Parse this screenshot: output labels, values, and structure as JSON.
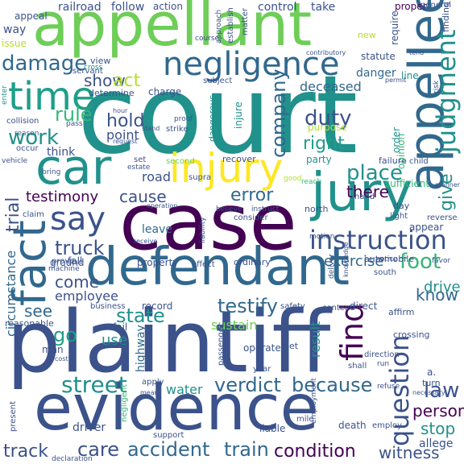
{
  "background": "#ffffff",
  "palette": {
    "dark": "#440154",
    "indigo": "#3b528b",
    "blue": "#31688e",
    "teal": "#21918c",
    "sea": "#1f9e89",
    "green": "#35b779",
    "lime": "#6ece58",
    "yellow": "#b5de2b",
    "gold": "#fde725"
  },
  "words": [
    {
      "text": "court",
      "color": "#21918c"
    },
    {
      "text": "plaintiff",
      "color": "#3b528b"
    },
    {
      "text": "evidence",
      "color": "#3b528b"
    },
    {
      "text": "case",
      "color": "#440154"
    },
    {
      "text": "appellant",
      "color": "#6ece58"
    },
    {
      "text": "defendant",
      "color": "#31688e"
    },
    {
      "text": "jury",
      "color": "#21918c"
    },
    {
      "text": "injury",
      "color": "#fde725"
    },
    {
      "text": "car",
      "color": "#21918c"
    },
    {
      "text": "appellee",
      "color": "#31688e"
    },
    {
      "text": "time",
      "color": "#1f9e89"
    },
    {
      "text": "negligence",
      "color": "#31688e"
    },
    {
      "text": "fact",
      "color": "#31688e"
    },
    {
      "text": "say",
      "color": "#3b528b"
    },
    {
      "text": "judgment",
      "color": "#21918c"
    },
    {
      "text": "instruction",
      "color": "#3b528b"
    },
    {
      "text": "question",
      "color": "#3b528b"
    },
    {
      "text": "find",
      "color": "#440154"
    },
    {
      "text": "law",
      "color": "#3b528b"
    },
    {
      "text": "street",
      "color": "#21918c"
    },
    {
      "text": "verdict",
      "color": "#31688e"
    },
    {
      "text": "because",
      "color": "#31688e"
    },
    {
      "text": "accident",
      "color": "#31688e"
    },
    {
      "text": "train",
      "color": "#31688e"
    },
    {
      "text": "condition",
      "color": "#440154"
    },
    {
      "text": "witness",
      "color": "#3b528b"
    },
    {
      "text": "work",
      "color": "#21918c"
    },
    {
      "text": "rule",
      "color": "#35b779"
    },
    {
      "text": "damage",
      "color": "#31688e"
    },
    {
      "text": "show",
      "color": "#3b528b"
    },
    {
      "text": "act",
      "color": "#b5de2b"
    },
    {
      "text": "hold",
      "color": "#3b528b"
    },
    {
      "text": "point",
      "color": "#3b528b"
    },
    {
      "text": "company",
      "color": "#31688e"
    },
    {
      "text": "duty",
      "color": "#3b528b"
    },
    {
      "text": "right",
      "color": "#1f9e89"
    },
    {
      "text": "place",
      "color": "#21918c"
    },
    {
      "text": "there",
      "color": "#440154"
    },
    {
      "text": "give",
      "color": "#21918c"
    },
    {
      "text": "testimony",
      "color": "#440154"
    },
    {
      "text": "cause",
      "color": "#3b528b"
    },
    {
      "text": "error",
      "color": "#31688e"
    },
    {
      "text": "trial",
      "color": "#3b528b"
    },
    {
      "text": "truck",
      "color": "#3b528b"
    },
    {
      "text": "foot",
      "color": "#35b779"
    },
    {
      "text": "know",
      "color": "#31688e"
    },
    {
      "text": "testify",
      "color": "#31688e"
    },
    {
      "text": "state",
      "color": "#21918c"
    },
    {
      "text": "go",
      "color": "#1f9e89"
    },
    {
      "text": "see",
      "color": "#31688e"
    },
    {
      "text": "come",
      "color": "#3b528b"
    },
    {
      "text": "employee",
      "color": "#3b528b"
    },
    {
      "text": "care",
      "color": "#3b528b"
    },
    {
      "text": "track",
      "color": "#3b528b"
    },
    {
      "text": "stop",
      "color": "#21918c"
    },
    {
      "text": "person",
      "color": "#440154"
    },
    {
      "text": "drive",
      "color": "#21918c"
    },
    {
      "text": "result",
      "color": "#21918c"
    },
    {
      "text": "sustain",
      "color": "#6ece58"
    },
    {
      "text": "use",
      "color": "#21918c"
    },
    {
      "text": "circumstance",
      "color": "#31688e"
    },
    {
      "text": "highway",
      "color": "#31688e"
    },
    {
      "text": "exercise",
      "color": "#31688e"
    },
    {
      "text": "leave",
      "color": "#31688e"
    },
    {
      "text": "road",
      "color": "#3b528b"
    },
    {
      "text": "deceased",
      "color": "#31688e"
    },
    {
      "text": "danger",
      "color": "#31688e"
    },
    {
      "text": "follow",
      "color": "#3b528b"
    },
    {
      "text": "action",
      "color": "#3b528b"
    },
    {
      "text": "control",
      "color": "#3b528b"
    },
    {
      "text": "take",
      "color": "#3b528b"
    },
    {
      "text": "railroad",
      "color": "#3b528b"
    },
    {
      "text": "think",
      "color": "#3b528b"
    },
    {
      "text": "water",
      "color": "#21918c"
    },
    {
      "text": "driver",
      "color": "#3b528b"
    },
    {
      "text": "allege",
      "color": "#3b528b"
    },
    {
      "text": "issue",
      "color": "#b5de2b"
    },
    {
      "text": "way",
      "color": "#3b528b"
    },
    {
      "text": "fail",
      "color": "#3b528b"
    },
    {
      "text": "ground",
      "color": "#3b528b"
    },
    {
      "text": "order",
      "color": "#21918c"
    },
    {
      "text": "party",
      "color": "#21918c"
    },
    {
      "text": "appear",
      "color": "#3b528b"
    },
    {
      "text": "statute",
      "color": "#3b528b"
    },
    {
      "text": "require",
      "color": "#3b528b"
    },
    {
      "text": "opinion",
      "color": "#35b779"
    },
    {
      "text": "injure",
      "color": "#21918c"
    },
    {
      "text": "property",
      "color": "#3b528b"
    },
    {
      "text": "record",
      "color": "#3b528b"
    },
    {
      "text": "man",
      "color": "#3b528b"
    },
    {
      "text": "proper",
      "color": "#440154"
    },
    {
      "text": "appeal",
      "color": "#3b528b"
    },
    {
      "text": "general",
      "color": "#3b528b"
    },
    {
      "text": "finding",
      "color": "#3b528b"
    },
    {
      "text": "matter",
      "color": "#3b528b"
    },
    {
      "text": "establish",
      "color": "#3b528b"
    },
    {
      "text": "approach",
      "color": "#3b528b"
    },
    {
      "text": "line",
      "color": "#21918c"
    },
    {
      "text": "view",
      "color": "#3b528b"
    },
    {
      "text": "servant",
      "color": "#3b528b"
    },
    {
      "text": "determine",
      "color": "#3b528b"
    },
    {
      "text": "charge",
      "color": "#3b528b"
    },
    {
      "text": "subject",
      "color": "#3b528b"
    },
    {
      "text": "cross",
      "color": "#21918c"
    },
    {
      "text": "reach",
      "color": "#35b779"
    },
    {
      "text": "enter",
      "color": "#21918c"
    },
    {
      "text": "collision",
      "color": "#3b528b"
    },
    {
      "text": "occur",
      "color": "#3b528b"
    },
    {
      "text": "strike",
      "color": "#3b528b"
    },
    {
      "text": "proof",
      "color": "#3b528b"
    },
    {
      "text": "dangerous",
      "color": "#21918c"
    },
    {
      "text": "purpose",
      "color": "#b5de2b"
    },
    {
      "text": "reason",
      "color": "#31688e"
    },
    {
      "text": "vehicle",
      "color": "#3b528b"
    },
    {
      "text": "set",
      "color": "#3b528b"
    },
    {
      "text": "estate",
      "color": "#3b528b"
    },
    {
      "text": "second",
      "color": "#6ece58"
    },
    {
      "text": "recover",
      "color": "#3b528b"
    },
    {
      "text": "supra",
      "color": "#3b528b"
    },
    {
      "text": "failure",
      "color": "#3b528b"
    },
    {
      "text": "child",
      "color": "#3b528b"
    },
    {
      "text": "sufficient",
      "color": "#35b779"
    },
    {
      "text": "claim",
      "color": "#3b528b"
    },
    {
      "text": "believe",
      "color": "#3b528b"
    },
    {
      "text": "instruct",
      "color": "#3b528b"
    },
    {
      "text": "north",
      "color": "#3b528b"
    },
    {
      "text": "day",
      "color": "#3b528b"
    },
    {
      "text": "light",
      "color": "#3b528b"
    },
    {
      "text": "reverse",
      "color": "#3b528b"
    },
    {
      "text": "hand",
      "color": "#3b528b"
    },
    {
      "text": "consider",
      "color": "#3b528b"
    },
    {
      "text": "liability",
      "color": "#3b528b"
    },
    {
      "text": "prove",
      "color": "#3b528b"
    },
    {
      "text": "fall",
      "color": "#3b528b"
    },
    {
      "text": "machine",
      "color": "#3b528b"
    },
    {
      "text": "effect",
      "color": "#3b528b"
    },
    {
      "text": "ordinary",
      "color": "#3b528b"
    },
    {
      "text": "motion",
      "color": "#3b528b"
    },
    {
      "text": "automobile",
      "color": "#3b528b"
    },
    {
      "text": "notice",
      "color": "#3b528b"
    },
    {
      "text": "favor",
      "color": "#3b528b"
    },
    {
      "text": "south",
      "color": "#3b528b"
    },
    {
      "text": "business",
      "color": "#3b528b"
    },
    {
      "text": "safety",
      "color": "#3b528b"
    },
    {
      "text": "contend",
      "color": "#3b528b"
    },
    {
      "text": "direct",
      "color": "#3b528b"
    },
    {
      "text": "affirm",
      "color": "#3b528b"
    },
    {
      "text": "crossing",
      "color": "#3b528b"
    },
    {
      "text": "reasonable",
      "color": "#3b528b"
    },
    {
      "text": "repair",
      "color": "#3b528b"
    },
    {
      "text": "passenger",
      "color": "#3b528b"
    },
    {
      "text": "operate",
      "color": "#3b528b"
    },
    {
      "text": "get",
      "color": "#3b528b"
    },
    {
      "text": "direction",
      "color": "#3b528b"
    },
    {
      "text": "shall",
      "color": "#3b528b"
    },
    {
      "text": "run",
      "color": "#3b528b"
    },
    {
      "text": "year",
      "color": "#3b528b"
    },
    {
      "text": "apply",
      "color": "#3b528b"
    },
    {
      "text": "refuse",
      "color": "#3b528b"
    },
    {
      "text": "turn",
      "color": "#3b528b"
    },
    {
      "text": "negligent",
      "color": "#35b779"
    },
    {
      "text": "support",
      "color": "#3b528b"
    },
    {
      "text": "liable",
      "color": "#3b528b"
    },
    {
      "text": "mile",
      "color": "#3b528b"
    },
    {
      "text": "death",
      "color": "#3b528b"
    },
    {
      "text": "employ",
      "color": "#3b528b"
    },
    {
      "text": "employment",
      "color": "#3b528b"
    },
    {
      "text": "present",
      "color": "#3b528b"
    },
    {
      "text": "declaration",
      "color": "#3b528b"
    },
    {
      "text": "new",
      "color": "#b5de2b"
    },
    {
      "text": "pass",
      "color": "#3b528b"
    },
    {
      "text": "bring",
      "color": "#3b528b"
    },
    {
      "text": "good",
      "color": "#b5de2b"
    },
    {
      "text": "deliver",
      "color": "#3b528b"
    },
    {
      "text": "course",
      "color": "#3b528b"
    },
    {
      "text": "contributory",
      "color": "#3b528b"
    },
    {
      "text": "risk",
      "color": "#3b528b"
    },
    {
      "text": "permit",
      "color": "#3b528b"
    },
    {
      "text": "hour",
      "color": "#3b528b"
    },
    {
      "text": "request",
      "color": "#3b528b"
    },
    {
      "text": "stand",
      "color": "#3b528b"
    },
    {
      "text": "operation",
      "color": "#3b528b"
    },
    {
      "text": "manner",
      "color": "#3b528b"
    },
    {
      "text": "knowledge",
      "color": "#3b528b"
    },
    {
      "text": "receive",
      "color": "#3b528b"
    },
    {
      "text": "cost",
      "color": "#3b528b"
    },
    {
      "text": "mean",
      "color": "#3b528b"
    },
    {
      "text": "necessary",
      "color": "#3b528b"
    },
    {
      "text": "a.",
      "color": "#3b528b"
    },
    {
      "text": "tend",
      "color": "#3b528b"
    }
  ]
}
